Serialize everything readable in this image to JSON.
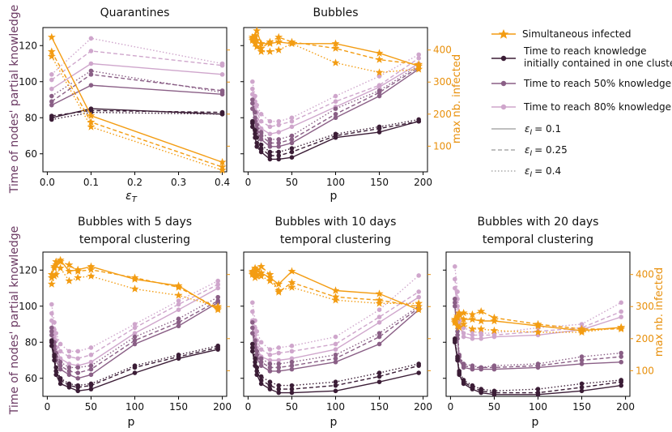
{
  "colors": {
    "infected": "#f39c12",
    "t_init": "#3b1d36",
    "t50": "#8a5f86",
    "t80": "#cfa6cc",
    "right_axis": "#e8900c",
    "left_axis": "#6b3a63"
  },
  "legend": {
    "items": [
      {
        "label": "Simultaneous infected"
      },
      {
        "label": "Time to reach knowledge"
      },
      {
        "label": "initially contained in one cluster"
      },
      {
        "label": "Time to reach 50% knowledge"
      },
      {
        "label": "Time to reach 80% knowledge"
      }
    ],
    "eps_symbol": "ε",
    "eps_sub": "I",
    "eps_values": [
      "= 0.1",
      "= 0.25",
      "= 0.4"
    ]
  },
  "axis_labels": {
    "left": "Time of nodes' partial knowledge",
    "right": "max nb. infected",
    "x_p": "p",
    "x_eps_symbol": "ε",
    "x_eps_sub": "T"
  },
  "chart_data": [
    {
      "type": "line",
      "title": [
        "Quarantines"
      ],
      "x_ticks": [
        "0.0",
        "0.1",
        "0.2",
        "0.3",
        "0.4"
      ],
      "xlim": [
        -0.01,
        0.41
      ],
      "ylim": [
        50,
        130
      ],
      "y_ticks": [
        "60",
        "80",
        "100",
        "120"
      ],
      "right_ylim": [
        20,
        470
      ],
      "right_ticks": [],
      "x": [
        0.01,
        0.1,
        0.4
      ],
      "series": [
        {
          "metric": "t_init",
          "eps": "0.1",
          "values": [
            80,
            85,
            82
          ]
        },
        {
          "metric": "t_init",
          "eps": "0.25",
          "values": [
            81,
            84,
            83
          ]
        },
        {
          "metric": "t_init",
          "eps": "0.4",
          "values": [
            79,
            83,
            82
          ]
        },
        {
          "metric": "t50",
          "eps": "0.1",
          "values": [
            87,
            98,
            93
          ]
        },
        {
          "metric": "t50",
          "eps": "0.25",
          "values": [
            89,
            104,
            95
          ]
        },
        {
          "metric": "t50",
          "eps": "0.4",
          "values": [
            92,
            106,
            94
          ]
        },
        {
          "metric": "t80",
          "eps": "0.1",
          "values": [
            96,
            110,
            104
          ]
        },
        {
          "metric": "t80",
          "eps": "0.25",
          "values": [
            101,
            117,
            109
          ]
        },
        {
          "metric": "t80",
          "eps": "0.4",
          "values": [
            104,
            124,
            110
          ]
        },
        {
          "metric": "infected",
          "eps": "0.1",
          "values": [
            440,
            195,
            50
          ]
        },
        {
          "metric": "infected",
          "eps": "0.25",
          "values": [
            395,
            175,
            35
          ]
        },
        {
          "metric": "infected",
          "eps": "0.4",
          "values": [
            380,
            160,
            25
          ]
        }
      ]
    },
    {
      "type": "line",
      "title": [
        "Bubbles"
      ],
      "x_ticks": [
        "0",
        "50",
        "100",
        "150",
        "200"
      ],
      "xlim": [
        -5,
        205
      ],
      "ylim": [
        50,
        130
      ],
      "y_ticks": [],
      "right_ylim": [
        20,
        470
      ],
      "right_ticks": [
        "100",
        "200",
        "300",
        "400"
      ],
      "x": [
        5,
        8,
        10,
        15,
        25,
        35,
        50,
        100,
        150,
        195
      ],
      "series": [
        {
          "metric": "t_init",
          "eps": "0.1",
          "values": [
            75,
            69,
            64,
            61,
            57,
            57,
            58,
            69,
            72,
            78
          ]
        },
        {
          "metric": "t_init",
          "eps": "0.25",
          "values": [
            77,
            71,
            66,
            63,
            59,
            59,
            61,
            70,
            74,
            78
          ]
        },
        {
          "metric": "t_init",
          "eps": "0.4",
          "values": [
            78,
            73,
            69,
            65,
            61,
            61,
            63,
            71,
            75,
            79
          ]
        },
        {
          "metric": "t50",
          "eps": "0.1",
          "values": [
            85,
            78,
            72,
            68,
            64,
            64,
            66,
            80,
            92,
            107
          ]
        },
        {
          "metric": "t50",
          "eps": "0.25",
          "values": [
            88,
            80,
            74,
            70,
            66,
            66,
            68,
            82,
            94,
            108
          ]
        },
        {
          "metric": "t50",
          "eps": "0.4",
          "values": [
            90,
            83,
            76,
            72,
            68,
            68,
            70,
            85,
            95,
            109
          ]
        },
        {
          "metric": "t80",
          "eps": "0.1",
          "values": [
            93,
            86,
            79,
            74,
            71,
            72,
            75,
            86,
            97,
            110
          ]
        },
        {
          "metric": "t80",
          "eps": "0.25",
          "values": [
            96,
            89,
            83,
            78,
            75,
            76,
            78,
            89,
            98,
            113
          ]
        },
        {
          "metric": "t80",
          "eps": "0.4",
          "values": [
            100,
            92,
            87,
            82,
            78,
            78,
            80,
            92,
            103,
            115
          ]
        },
        {
          "metric": "infected",
          "eps": "0.1",
          "values": [
            430,
            445,
            460,
            420,
            420,
            425,
            420,
            420,
            390,
            350
          ]
        },
        {
          "metric": "infected",
          "eps": "0.25",
          "values": [
            435,
            440,
            430,
            405,
            425,
            440,
            425,
            405,
            370,
            355
          ]
        },
        {
          "metric": "infected",
          "eps": "0.4",
          "values": [
            440,
            420,
            410,
            395,
            395,
            400,
            420,
            360,
            330,
            340
          ]
        }
      ]
    },
    {
      "type": "line",
      "title": [
        "Bubbles with 5 days",
        "temporal clustering"
      ],
      "x_ticks": [
        "0",
        "50",
        "100",
        "150",
        "200"
      ],
      "xlim": [
        -5,
        205
      ],
      "ylim": [
        50,
        130
      ],
      "y_ticks": [
        "60",
        "80",
        "100",
        "120"
      ],
      "right_ylim": [
        20,
        470
      ],
      "right_ticks": [],
      "x": [
        5,
        8,
        10,
        15,
        25,
        35,
        50,
        100,
        150,
        195
      ],
      "series": [
        {
          "metric": "t_init",
          "eps": "0.1",
          "values": [
            78,
            70,
            62,
            57,
            55,
            53,
            54,
            63,
            71,
            76
          ]
        },
        {
          "metric": "t_init",
          "eps": "0.25",
          "values": [
            80,
            72,
            64,
            59,
            56,
            55,
            56,
            66,
            72,
            77
          ]
        },
        {
          "metric": "t_init",
          "eps": "0.4",
          "values": [
            81,
            73,
            66,
            60,
            57,
            56,
            57,
            67,
            73,
            78
          ]
        },
        {
          "metric": "t50",
          "eps": "0.1",
          "values": [
            84,
            76,
            70,
            65,
            62,
            60,
            62,
            79,
            89,
            102
          ]
        },
        {
          "metric": "t50",
          "eps": "0.25",
          "values": [
            86,
            78,
            72,
            67,
            64,
            63,
            65,
            81,
            91,
            103
          ]
        },
        {
          "metric": "t50",
          "eps": "0.4",
          "values": [
            88,
            80,
            74,
            69,
            66,
            66,
            67,
            83,
            93,
            105
          ]
        },
        {
          "metric": "t80",
          "eps": "0.1",
          "values": [
            92,
            83,
            77,
            71,
            68,
            67,
            69,
            85,
            98,
            110
          ]
        },
        {
          "metric": "t80",
          "eps": "0.25",
          "values": [
            96,
            87,
            81,
            75,
            72,
            71,
            73,
            88,
            101,
            112
          ]
        },
        {
          "metric": "t80",
          "eps": "0.4",
          "values": [
            101,
            91,
            85,
            79,
            75,
            75,
            77,
            90,
            103,
            114
          ]
        },
        {
          "metric": "infected",
          "eps": "0.1",
          "values": [
            400,
            420,
            430,
            445,
            410,
            415,
            425,
            385,
            365,
            290
          ]
        },
        {
          "metric": "infected",
          "eps": "0.25",
          "values": [
            390,
            425,
            440,
            440,
            430,
            410,
            415,
            390,
            360,
            295
          ]
        },
        {
          "metric": "infected",
          "eps": "0.4",
          "values": [
            370,
            395,
            400,
            420,
            380,
            390,
            395,
            355,
            335,
            300
          ]
        }
      ]
    },
    {
      "type": "line",
      "title": [
        "Bubbles with 10 days",
        "temporal clustering"
      ],
      "x_ticks": [
        "0",
        "50",
        "100",
        "150",
        "200"
      ],
      "xlim": [
        -5,
        205
      ],
      "ylim": [
        50,
        130
      ],
      "y_ticks": [],
      "right_ylim": [
        20,
        470
      ],
      "right_ticks": [],
      "x": [
        5,
        8,
        10,
        15,
        25,
        35,
        50,
        100,
        150,
        195
      ],
      "series": [
        {
          "metric": "t_init",
          "eps": "0.1",
          "values": [
            75,
            67,
            62,
            57,
            54,
            52,
            52,
            53,
            58,
            63
          ]
        },
        {
          "metric": "t_init",
          "eps": "0.25",
          "values": [
            77,
            69,
            64,
            59,
            56,
            54,
            54,
            56,
            61,
            67
          ]
        },
        {
          "metric": "t_init",
          "eps": "0.4",
          "values": [
            79,
            71,
            66,
            61,
            58,
            56,
            56,
            58,
            63,
            68
          ]
        },
        {
          "metric": "t50",
          "eps": "0.1",
          "values": [
            85,
            77,
            71,
            67,
            64,
            64,
            65,
            69,
            79,
            98
          ]
        },
        {
          "metric": "t50",
          "eps": "0.25",
          "values": [
            88,
            79,
            73,
            69,
            66,
            66,
            67,
            71,
            83,
            99
          ]
        },
        {
          "metric": "t50",
          "eps": "0.4",
          "values": [
            91,
            81,
            75,
            71,
            68,
            68,
            69,
            73,
            85,
            100
          ]
        },
        {
          "metric": "t80",
          "eps": "0.1",
          "values": [
            92,
            84,
            77,
            72,
            70,
            70,
            71,
            76,
            91,
            105
          ]
        },
        {
          "metric": "t80",
          "eps": "0.25",
          "values": [
            97,
            88,
            81,
            76,
            73,
            74,
            75,
            79,
            94,
            108
          ]
        },
        {
          "metric": "t80",
          "eps": "0.4",
          "values": [
            102,
            92,
            86,
            80,
            76,
            77,
            78,
            83,
            98,
            117
          ]
        },
        {
          "metric": "infected",
          "eps": "0.1",
          "values": [
            410,
            400,
            415,
            405,
            390,
            370,
            410,
            350,
            340,
            290
          ]
        },
        {
          "metric": "infected",
          "eps": "0.25",
          "values": [
            405,
            420,
            395,
            425,
            400,
            345,
            375,
            330,
            320,
            300
          ]
        },
        {
          "metric": "infected",
          "eps": "0.4",
          "values": [
            400,
            390,
            400,
            395,
            380,
            350,
            360,
            320,
            310,
            310
          ]
        }
      ]
    },
    {
      "type": "line",
      "title": [
        "Bubbles with 20 days",
        "temporal clustering"
      ],
      "x_ticks": [
        "0",
        "50",
        "100",
        "150",
        "200"
      ],
      "xlim": [
        -5,
        205
      ],
      "ylim": [
        50,
        130
      ],
      "y_ticks": [],
      "right_ylim": [
        20,
        470
      ],
      "right_ticks": [
        "100",
        "200",
        "300",
        "400"
      ],
      "x": [
        5,
        8,
        10,
        15,
        25,
        35,
        50,
        100,
        150,
        195
      ],
      "series": [
        {
          "metric": "t_init",
          "eps": "0.1",
          "values": [
            80,
            70,
            62,
            57,
            54,
            52,
            51,
            51,
            53,
            56
          ]
        },
        {
          "metric": "t_init",
          "eps": "0.25",
          "values": [
            81,
            71,
            63,
            58,
            55,
            53,
            52,
            52,
            55,
            58
          ]
        },
        {
          "metric": "t_init",
          "eps": "0.4",
          "values": [
            82,
            72,
            64,
            59,
            56,
            54,
            53,
            54,
            57,
            59
          ]
        },
        {
          "metric": "t50",
          "eps": "0.1",
          "values": [
            100,
            82,
            70,
            66,
            65,
            65,
            65,
            66,
            68,
            69
          ]
        },
        {
          "metric": "t50",
          "eps": "0.25",
          "values": [
            102,
            84,
            72,
            67,
            66,
            66,
            66,
            67,
            70,
            72
          ]
        },
        {
          "metric": "t50",
          "eps": "0.4",
          "values": [
            104,
            86,
            73,
            68,
            67,
            66,
            67,
            68,
            72,
            74
          ]
        },
        {
          "metric": "t80",
          "eps": "0.1",
          "values": [
            110,
            100,
            90,
            83,
            82,
            82,
            83,
            84,
            87,
            94
          ]
        },
        {
          "metric": "t80",
          "eps": "0.25",
          "values": [
            115,
            104,
            92,
            85,
            84,
            84,
            84,
            86,
            88,
            97
          ]
        },
        {
          "metric": "t80",
          "eps": "0.4",
          "values": [
            122,
            108,
            96,
            88,
            86,
            85,
            85,
            88,
            90,
            102
          ]
        },
        {
          "metric": "infected",
          "eps": "0.1",
          "values": [
            250,
            270,
            275,
            260,
            260,
            255,
            255,
            240,
            225,
            235
          ]
        },
        {
          "metric": "infected",
          "eps": "0.25",
          "values": [
            260,
            265,
            280,
            280,
            275,
            285,
            265,
            245,
            230,
            230
          ]
        },
        {
          "metric": "infected",
          "eps": "0.4",
          "values": [
            255,
            240,
            235,
            245,
            230,
            230,
            225,
            220,
            220,
            235
          ]
        }
      ]
    }
  ]
}
